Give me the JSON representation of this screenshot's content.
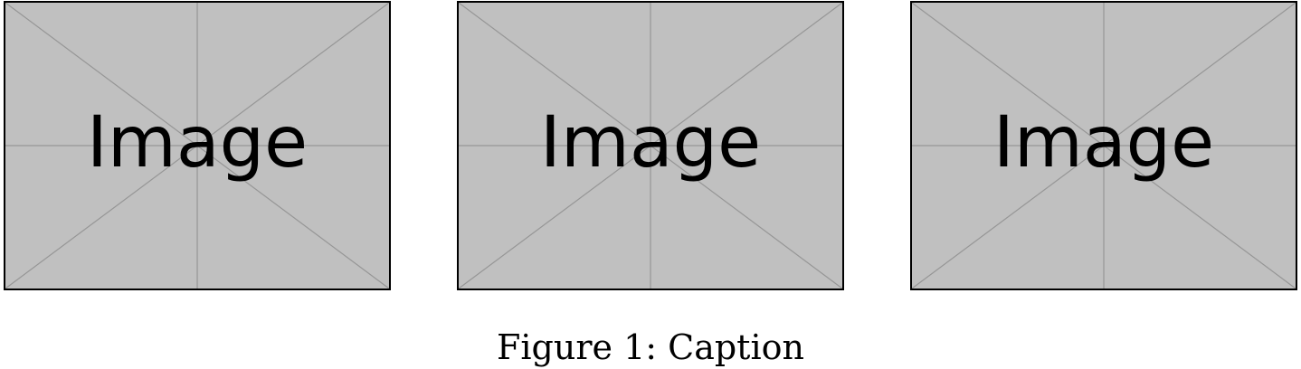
{
  "figure": {
    "images": [
      {
        "label": "Image",
        "fill": "#c0c0c0",
        "line_color": "#969696"
      },
      {
        "label": "Image",
        "fill": "#c0c0c0",
        "line_color": "#969696"
      },
      {
        "label": "Image",
        "fill": "#c0c0c0",
        "line_color": "#969696"
      }
    ],
    "caption": "Figure 1: Caption"
  }
}
